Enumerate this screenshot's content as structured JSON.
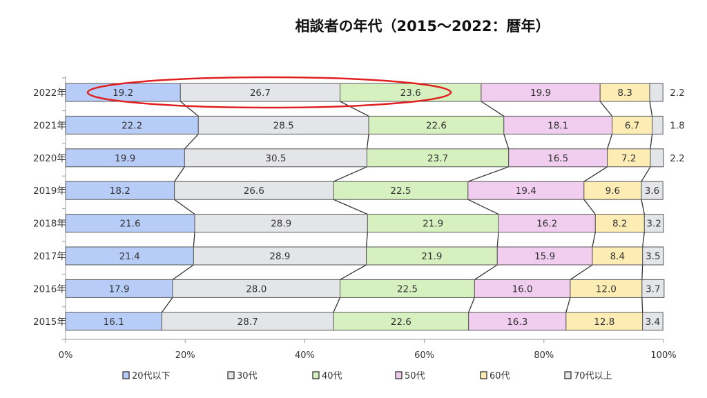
{
  "chart_data": {
    "type": "bar",
    "orientation": "horizontal",
    "stacked": "100%",
    "title": "相談者の年代（2015〜2022：暦年）",
    "categories": [
      "2022年",
      "2021年",
      "2020年",
      "2019年",
      "2018年",
      "2017年",
      "2016年",
      "2015年"
    ],
    "series": [
      {
        "name": "20代以下",
        "color": "#b7cdf7",
        "values": [
          19.2,
          22.2,
          19.9,
          18.2,
          21.6,
          21.4,
          17.9,
          16.1
        ]
      },
      {
        "name": "30代",
        "color": "#e3e5e9",
        "values": [
          26.7,
          28.5,
          30.5,
          26.6,
          28.9,
          28.9,
          28.0,
          28.7
        ]
      },
      {
        "name": "40代",
        "color": "#d6f0c0",
        "values": [
          23.6,
          22.6,
          23.7,
          22.5,
          21.9,
          21.9,
          22.5,
          22.6
        ]
      },
      {
        "name": "50代",
        "color": "#f1cdef",
        "values": [
          19.9,
          18.1,
          16.5,
          19.4,
          16.2,
          15.9,
          16.0,
          16.3
        ]
      },
      {
        "name": "60代",
        "color": "#fdedb5",
        "values": [
          8.3,
          6.7,
          7.2,
          9.6,
          8.2,
          8.4,
          12.0,
          12.8
        ]
      },
      {
        "name": "70代以上",
        "color": "#e3e5e9",
        "values": [
          2.2,
          1.8,
          2.2,
          3.6,
          3.2,
          3.5,
          3.7,
          3.4
        ]
      }
    ],
    "value_labels": [
      "19.2",
      "26.7",
      "23.6",
      "19.9",
      "8.3",
      "2.2",
      "22.2",
      "28.5",
      "22.6",
      "18.1",
      "6.7",
      "1.8",
      "19.9",
      "30.5",
      "23.7",
      "16.5",
      "7.2",
      "2.2",
      "18.2",
      "26.6",
      "22.5",
      "19.4",
      "9.6",
      "3.6",
      "21.6",
      "28.9",
      "21.9",
      "16.2",
      "8.2",
      "3.2",
      "21.4",
      "28.9",
      "21.9",
      "15.9",
      "8.4",
      "3.5",
      "17.9",
      "28.0",
      "22.5",
      "16.0",
      "12.0",
      "3.7",
      "16.1",
      "28.7",
      "22.6",
      "16.3",
      "12.8",
      "3.4"
    ],
    "xlim": [
      0,
      100
    ],
    "xticks": [
      "0%",
      "20%",
      "40%",
      "60%",
      "80%",
      "100%"
    ],
    "legend_position": "bottom",
    "grid": false,
    "series_lines": true,
    "highlight": {
      "category": "2022年",
      "series": [
        "20代以下",
        "30代",
        "40代"
      ],
      "shape": "ellipse",
      "color": "#e02020"
    }
  }
}
